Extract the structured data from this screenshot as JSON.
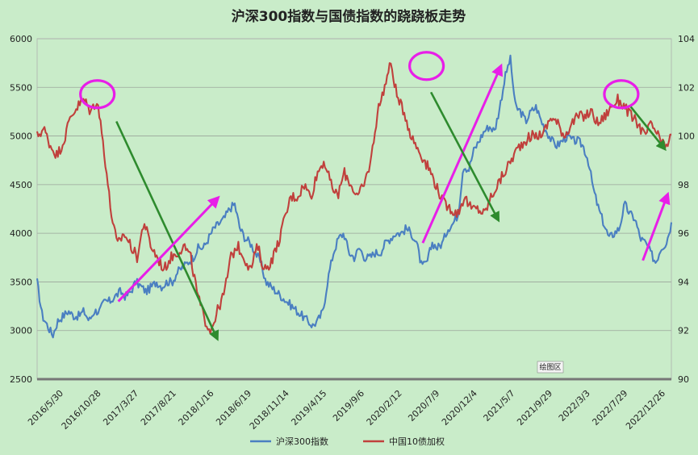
{
  "chart_data": {
    "type": "line",
    "title": "沪深300指数与国债指数的跷跷板走势",
    "plot_area_label": "绘图区",
    "x_tick_labels": [
      "2016/5/30",
      "2016/10/28",
      "2017/3/27",
      "2017/8/21",
      "2018/1/16",
      "2018/6/19",
      "2018/11/14",
      "2019/4/15",
      "2019/9/6",
      "2020/2/12",
      "2020/7/9",
      "2020/12/4",
      "2021/5/7",
      "2021/9/29",
      "2022/3/3",
      "2022/7/29",
      "2022/12/26"
    ],
    "y_left": {
      "ticks": [
        2500,
        3000,
        3500,
        4000,
        4500,
        5000,
        5500,
        6000
      ],
      "range": [
        2500,
        6000
      ]
    },
    "y_right": {
      "ticks": [
        90,
        92,
        94,
        96,
        98,
        100,
        102,
        104
      ],
      "range": [
        90,
        104
      ]
    },
    "legend_position": "bottom",
    "grid": true,
    "series": [
      {
        "name": "沪深300指数",
        "axis": "left",
        "color": "#4a7fc1",
        "values": [
          3500,
          3150,
          3050,
          2950,
          3100,
          3150,
          3200,
          3150,
          3150,
          3200,
          3100,
          3200,
          3200,
          3300,
          3300,
          3350,
          3400,
          3350,
          3400,
          3500,
          3450,
          3400,
          3450,
          3500,
          3450,
          3500,
          3500,
          3600,
          3650,
          3700,
          3750,
          3850,
          3850,
          3950,
          4050,
          4100,
          4150,
          4250,
          4300,
          4050,
          3950,
          3900,
          3800,
          3700,
          3500,
          3450,
          3400,
          3350,
          3300,
          3250,
          3200,
          3150,
          3100,
          3050,
          3100,
          3200,
          3550,
          3800,
          3950,
          4000,
          3800,
          3750,
          3850,
          3750,
          3750,
          3800,
          3800,
          3900,
          3950,
          4000,
          4000,
          4050,
          4000,
          3900,
          3650,
          3700,
          3900,
          3850,
          3900,
          4050,
          4100,
          4200,
          4700,
          4650,
          4850,
          4950,
          5050,
          5100,
          5050,
          5300,
          5600,
          5800,
          5300,
          5250,
          5150,
          5250,
          5300,
          5150,
          5050,
          4950,
          4900,
          4950,
          5000,
          4950,
          4950,
          4900,
          4750,
          4450,
          4250,
          4100,
          3950,
          4000,
          4050,
          4300,
          4200,
          4150,
          3950,
          3900,
          3800,
          3700,
          3850,
          3900,
          4100
        ]
      },
      {
        "name": "中国10债加权",
        "axis": "right",
        "color": "#c0403c",
        "values": [
          100.0,
          100.3,
          99.6,
          99.2,
          99.8,
          100.8,
          101.2,
          101.5,
          101.0,
          101.5,
          99.5,
          97.0,
          95.5,
          96.0,
          95.5,
          95.0,
          96.5,
          95.5,
          95.0,
          94.5,
          95.0,
          95.2,
          95.5,
          95.0,
          93.5,
          92.5,
          92.0,
          92.8,
          93.5,
          95.0,
          95.5,
          95.0,
          94.5,
          95.5,
          94.5,
          94.8,
          95.5,
          96.5,
          97.5,
          97.5,
          98.0,
          97.5,
          98.5,
          99.0,
          98.0,
          97.5,
          98.5,
          98.0,
          97.5,
          98.0,
          99.0,
          101.0,
          102.0,
          103.0,
          101.5,
          101.0,
          100.0,
          99.5,
          99.0,
          98.5,
          97.8,
          97.2,
          97.0,
          96.8,
          97.5,
          97.0,
          97.0,
          96.8,
          97.5,
          98.0,
          98.5,
          99.0,
          99.5,
          99.8,
          100.0,
          100.0,
          100.2,
          100.8,
          100.5,
          100.0,
          100.5,
          100.8,
          100.8,
          101.0,
          100.5,
          100.8,
          101.2,
          101.5,
          101.2,
          100.8,
          100.5,
          100.0,
          100.5,
          100.0,
          99.5,
          100.0
        ]
      }
    ],
    "annotations": [
      {
        "kind": "circle",
        "color": "#e81ee8",
        "x": 0.095,
        "y": 5430,
        "axis": "left"
      },
      {
        "kind": "circle",
        "color": "#e81ee8",
        "x": 0.614,
        "y": 5720,
        "axis": "left"
      },
      {
        "kind": "circle",
        "color": "#e81ee8",
        "x": 0.921,
        "y": 5430,
        "axis": "left"
      },
      {
        "kind": "arrow",
        "color": "#2e8b2e",
        "x1": 0.125,
        "y1": 5150,
        "x2": 0.283,
        "y2": 2930
      },
      {
        "kind": "arrow",
        "color": "#e81ee8",
        "x1": 0.128,
        "y1": 3300,
        "x2": 0.283,
        "y2": 4350
      },
      {
        "kind": "arrow",
        "color": "#e81ee8",
        "x1": 0.608,
        "y1": 3900,
        "x2": 0.73,
        "y2": 5700
      },
      {
        "kind": "arrow",
        "color": "#2e8b2e",
        "x1": 0.621,
        "y1": 5450,
        "x2": 0.726,
        "y2": 4150
      },
      {
        "kind": "arrow",
        "color": "#2e8b2e",
        "x1": 0.936,
        "y1": 5300,
        "x2": 0.988,
        "y2": 4880
      },
      {
        "kind": "arrow",
        "color": "#e81ee8",
        "x1": 0.955,
        "y1": 3720,
        "x2": 0.993,
        "y2": 4380
      }
    ]
  }
}
